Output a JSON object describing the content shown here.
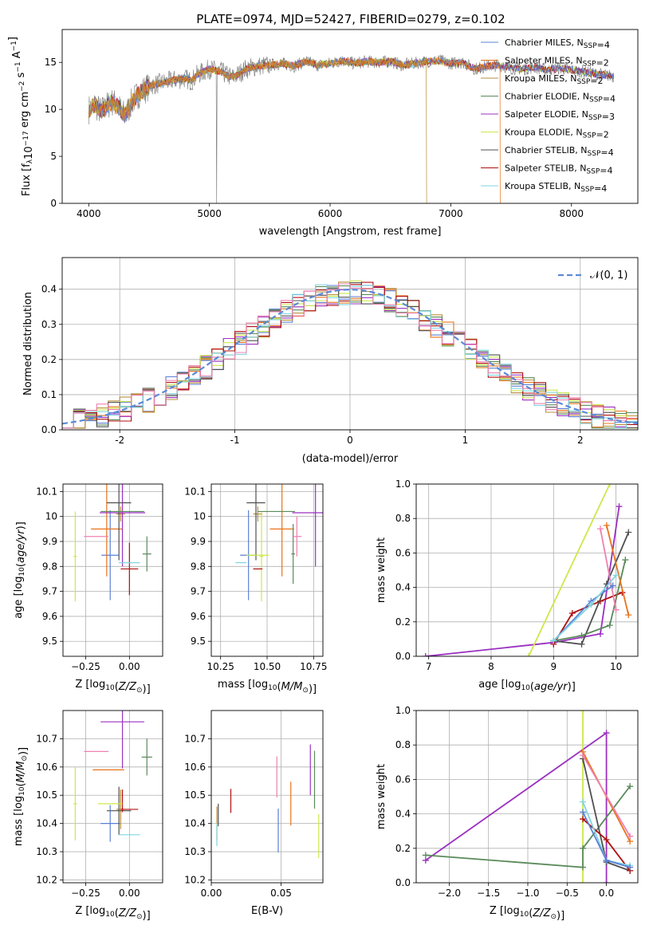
{
  "figure_title": "PLATE=0974, MJD=52427, FIBERID=0279, z=0.102",
  "colors": {
    "Chabrier MILES": "#5b7fd6",
    "Salpeter MILES": "#e8731a",
    "Kroupa MILES": "#b7903c",
    "Chabrier ELODIE": "#5a8a5a",
    "Salpeter ELODIE": "#9b30c0",
    "Kroupa ELODIE": "#cce84a",
    "Chabrier STELIB": "#505050",
    "Salpeter STELIB": "#b01010",
    "Kroupa STELIB": "#7fd6e0",
    "pink": "#f080b0",
    "data": "#777777",
    "gauss": "#5b8ad6"
  },
  "chart_data": [
    {
      "id": "spectrum",
      "type": "line",
      "title": "PLATE=0974, MJD=52427, FIBERID=0279, z=0.102",
      "xlabel": "wavelength [Angstrom, rest frame]",
      "ylabel_parts": [
        "Flux [f",
        "λ",
        "10",
        "−17",
        " erg cm",
        "−2",
        " s",
        "−1",
        " A",
        "−1",
        "]"
      ],
      "xlim": [
        3780,
        8550
      ],
      "ylim": [
        0,
        18.5
      ],
      "xticks": [
        4000,
        5000,
        6000,
        7000,
        8000
      ],
      "yticks": [
        0,
        5,
        10,
        15
      ],
      "legend": [
        {
          "name": "Chabrier MILES",
          "nssp": "4"
        },
        {
          "name": "Salpeter MILES",
          "nssp": "2"
        },
        {
          "name": "Kroupa MILES",
          "nssp": "2"
        },
        {
          "name": "Chabrier ELODIE",
          "nssp": "4"
        },
        {
          "name": "Salpeter ELODIE",
          "nssp": "3"
        },
        {
          "name": "Kroupa ELODIE",
          "nssp": "2"
        },
        {
          "name": "Chabrier STELIB",
          "nssp": "4"
        },
        {
          "name": "Salpeter STELIB",
          "nssp": "4"
        },
        {
          "name": "Kroupa STELIB",
          "nssp": "4"
        }
      ],
      "legend_placement": "upper right",
      "grid": false,
      "continuum": [
        [
          4000,
          10.0
        ],
        [
          4050,
          10.5
        ],
        [
          4100,
          9.8
        ],
        [
          4150,
          10.4
        ],
        [
          4200,
          10.8
        ],
        [
          4250,
          10.2
        ],
        [
          4300,
          9.3
        ],
        [
          4350,
          10.6
        ],
        [
          4400,
          11.5
        ],
        [
          4450,
          12.0
        ],
        [
          4500,
          12.5
        ],
        [
          4600,
          12.8
        ],
        [
          4700,
          13.1
        ],
        [
          4800,
          13.3
        ],
        [
          4850,
          13.0
        ],
        [
          4900,
          13.7
        ],
        [
          5000,
          14.3
        ],
        [
          5100,
          14.0
        ],
        [
          5150,
          13.6
        ],
        [
          5200,
          13.4
        ],
        [
          5300,
          14.3
        ],
        [
          5400,
          14.6
        ],
        [
          5500,
          14.7
        ],
        [
          5600,
          14.9
        ],
        [
          5700,
          14.6
        ],
        [
          5800,
          15.1
        ],
        [
          5900,
          14.7
        ],
        [
          6000,
          14.9
        ],
        [
          6100,
          15.2
        ],
        [
          6200,
          14.9
        ],
        [
          6300,
          15.1
        ],
        [
          6400,
          15.0
        ],
        [
          6500,
          15.1
        ],
        [
          6600,
          14.7
        ],
        [
          6700,
          14.9
        ],
        [
          6800,
          15.1
        ],
        [
          6900,
          15.2
        ],
        [
          7000,
          14.9
        ],
        [
          7100,
          15.0
        ],
        [
          7200,
          14.3
        ],
        [
          7300,
          14.6
        ],
        [
          7400,
          14.7
        ],
        [
          7500,
          14.4
        ],
        [
          7600,
          14.3
        ],
        [
          7700,
          14.5
        ],
        [
          7800,
          14.2
        ],
        [
          7900,
          14.4
        ],
        [
          8000,
          14.2
        ],
        [
          8100,
          14.0
        ],
        [
          8200,
          13.8
        ],
        [
          8300,
          13.6
        ],
        [
          8350,
          13.5
        ]
      ],
      "drops": [
        {
          "x": 5060,
          "y": 0,
          "series": "data"
        },
        {
          "x": 6800,
          "y": 0,
          "series": "Kroupa MILES"
        },
        {
          "x": 7410,
          "y": 0,
          "series": "Salpeter MILES"
        }
      ]
    },
    {
      "id": "residuals",
      "type": "histogram",
      "xlabel": "(data-model)/error",
      "ylabel": "Normed distribution",
      "xlim": [
        -2.5,
        2.5
      ],
      "ylim": [
        0,
        0.49
      ],
      "xticks": [
        -2,
        -1,
        0,
        1,
        2
      ],
      "yticks": [
        0.0,
        0.1,
        0.2,
        0.3,
        0.4
      ],
      "ytick_labels": [
        "0.0",
        "0.1",
        "0.2",
        "0.3",
        "0.4"
      ],
      "grid": true,
      "legend_label": "𝒩(0, 1)",
      "legend_placement": "upper right",
      "bins": 50,
      "series_colors": [
        "Chabrier MILES",
        "Salpeter MILES",
        "Kroupa MILES",
        "Chabrier ELODIE",
        "Salpeter ELODIE",
        "Kroupa ELODIE",
        "Chabrier STELIB",
        "Salpeter STELIB",
        "Kroupa STELIB",
        "pink"
      ],
      "gaussian": {
        "mu": 0,
        "sigma": 1
      }
    },
    {
      "id": "age_vs_Z",
      "type": "errorbar",
      "xlabel": "Z [log10(Z/Z⊙)]",
      "ylabel": "age  [log10(age/yr)]",
      "xlim": [
        -0.38,
        0.19
      ],
      "ylim": [
        9.44,
        10.13
      ],
      "xticks": [
        -0.25,
        0.0
      ],
      "xtick_labels": [
        "−0.25",
        "0.00"
      ],
      "yticks": [
        9.5,
        9.6,
        9.7,
        9.8,
        9.9,
        10.0,
        10.1
      ],
      "grid": true,
      "points": [
        {
          "c": "Chabrier MILES",
          "x": -0.11,
          "xe": 0.1,
          "y": 9.845,
          "ye": 0.36
        },
        {
          "c": "Salpeter MILES",
          "x": -0.13,
          "xe": 0.18,
          "y": 9.95,
          "ye": 0.38
        },
        {
          "c": "Kroupa MILES",
          "x": -0.05,
          "xe": 0.05,
          "y": 10.01,
          "ye": 0.06
        },
        {
          "c": "Chabrier ELODIE",
          "x": 0.1,
          "xe": 0.05,
          "y": 9.85,
          "ye": 0.14
        },
        {
          "c": "Salpeter ELODIE",
          "x": -0.04,
          "xe": 0.26,
          "y": 10.015,
          "ye": 0.43
        },
        {
          "c": "Kroupa ELODIE",
          "x": -0.31,
          "xe": 0.02,
          "y": 9.84,
          "ye": 0.36
        },
        {
          "c": "Chabrier STELIB",
          "x": -0.06,
          "xe": 0.14,
          "y": 10.055,
          "ye": 0.46
        },
        {
          "c": "Salpeter STELIB",
          "x": 0.0,
          "xe": 0.1,
          "y": 9.79,
          "ye": 0.21
        },
        {
          "c": "Kroupa STELIB",
          "x": 0.0,
          "xe": 0.12,
          "y": 9.815,
          "ye": 0.0
        },
        {
          "c": "pink",
          "x": -0.19,
          "xe": 0.14,
          "y": 9.92,
          "ye": 0.0
        },
        {
          "c": "Chabrier ELODIE",
          "x": -0.04,
          "xe": 0.25,
          "y": 10.02,
          "ye": 0.0
        }
      ]
    },
    {
      "id": "age_vs_mass",
      "type": "errorbar",
      "xlabel": "mass [log10(M/M⊙)]",
      "xlim": [
        10.2,
        10.8
      ],
      "ylim": [
        9.44,
        10.13
      ],
      "xticks": [
        10.25,
        10.5,
        10.75
      ],
      "xtick_labels": [
        "10.25",
        "10.50",
        "10.75"
      ],
      "yticks": [
        9.5,
        9.6,
        9.7,
        9.8,
        9.9,
        10.0,
        10.1
      ],
      "grid": true,
      "points": [
        {
          "c": "Chabrier MILES",
          "x": 10.4,
          "xe": 0.09,
          "y": 9.845,
          "ye": 0.36
        },
        {
          "c": "Salpeter MILES",
          "x": 10.58,
          "xe": 0.13,
          "y": 9.95,
          "ye": 0.38
        },
        {
          "c": "Kroupa MILES",
          "x": 10.45,
          "xe": 0.05,
          "y": 10.01,
          "ye": 0.06
        },
        {
          "c": "Chabrier ELODIE",
          "x": 10.64,
          "xe": 0.02,
          "y": 9.85,
          "ye": 0.24
        },
        {
          "c": "Salpeter ELODIE",
          "x": 10.76,
          "xe": 0.25,
          "y": 10.015,
          "ye": 0.43
        },
        {
          "c": "Kroupa ELODIE",
          "x": 10.47,
          "xe": 0.02,
          "y": 9.84,
          "ye": 0.36
        },
        {
          "c": "Chabrier STELIB",
          "x": 10.44,
          "xe": 0.1,
          "y": 10.055,
          "ye": 0.46
        },
        {
          "c": "Salpeter STELIB",
          "x": 10.45,
          "xe": 0.05,
          "y": 9.79,
          "ye": 0.0
        },
        {
          "c": "Kroupa STELIB",
          "x": 10.36,
          "xe": 0.06,
          "y": 9.815,
          "ye": 0.0
        },
        {
          "c": "pink",
          "x": 10.66,
          "xe": 0.05,
          "y": 9.92,
          "ye": 0.16
        },
        {
          "c": "Chabrier ELODIE",
          "x": 10.55,
          "xe": 0.2,
          "y": 10.02,
          "ye": 0.0
        },
        {
          "c": "Kroupa ELODIE",
          "x": 10.45,
          "xe": 0.12,
          "y": 9.845,
          "ye": 0.0
        }
      ]
    },
    {
      "id": "weight_vs_age",
      "type": "line",
      "xlabel": "age  [log10(age/yr)]",
      "ylabel": "mass weight",
      "xlim": [
        6.8,
        10.35
      ],
      "ylim": [
        0,
        1.0
      ],
      "xticks": [
        7,
        8,
        9,
        10
      ],
      "yticks": [
        0.0,
        0.2,
        0.4,
        0.6,
        0.8,
        1.0
      ],
      "ytick_labels": [
        "0.0",
        "0.2",
        "0.4",
        "0.6",
        "0.8",
        "1.0"
      ],
      "grid": true,
      "series": [
        {
          "c": "Salpeter ELODIE",
          "x": [
            6.95,
            9.0,
            9.75,
            10.05
          ],
          "y": [
            0.0,
            0.08,
            0.13,
            0.87
          ]
        },
        {
          "c": "Kroupa ELODIE",
          "x": [
            8.6,
            9.9
          ],
          "y": [
            0.0,
            1.0
          ]
        },
        {
          "c": "Salpeter STELIB",
          "x": [
            9.0,
            9.3,
            9.75,
            10.1
          ],
          "y": [
            0.07,
            0.25,
            0.32,
            0.37
          ]
        },
        {
          "c": "Chabrier STELIB",
          "x": [
            9.0,
            9.45,
            9.85,
            10.2
          ],
          "y": [
            0.09,
            0.07,
            0.42,
            0.72
          ]
        },
        {
          "c": "Chabrier ELODIE",
          "x": [
            9.0,
            9.45,
            9.9,
            10.15
          ],
          "y": [
            0.09,
            0.12,
            0.18,
            0.56
          ]
        },
        {
          "c": "Salpeter MILES",
          "x": [
            9.85,
            10.2
          ],
          "y": [
            0.76,
            0.24
          ]
        },
        {
          "c": "pink",
          "x": [
            9.75,
            10.0
          ],
          "y": [
            0.74,
            0.27
          ]
        },
        {
          "c": "Chabrier MILES",
          "x": [
            9.0,
            9.6,
            9.95
          ],
          "y": [
            0.09,
            0.32,
            0.41
          ]
        },
        {
          "c": "Kroupa STELIB",
          "x": [
            9.0,
            9.6,
            10.0
          ],
          "y": [
            0.09,
            0.3,
            0.47
          ]
        }
      ]
    },
    {
      "id": "mass_vs_Z",
      "type": "errorbar",
      "xlabel": "Z [log10(Z/Z⊙)]",
      "ylabel": "mass [log10(M/M⊙)]",
      "xlim": [
        -0.38,
        0.19
      ],
      "ylim": [
        10.19,
        10.8
      ],
      "xticks": [
        -0.25,
        0.0
      ],
      "xtick_labels": [
        "−0.25",
        "0.00"
      ],
      "yticks": [
        10.2,
        10.3,
        10.4,
        10.5,
        10.6,
        10.7
      ],
      "grid": true,
      "points": [
        {
          "c": "Chabrier MILES",
          "x": -0.11,
          "xe": 0.11,
          "y": 10.4,
          "ye": 0.13
        },
        {
          "c": "Salpeter MILES",
          "x": -0.12,
          "xe": 0.18,
          "y": 10.59,
          "ye": 0.0
        },
        {
          "c": "Kroupa MILES",
          "x": -0.05,
          "xe": 0.05,
          "y": 10.45,
          "ye": 0.14
        },
        {
          "c": "Chabrier ELODIE",
          "x": 0.1,
          "xe": 0.06,
          "y": 10.635,
          "ye": 0.13
        },
        {
          "c": "Salpeter ELODIE",
          "x": -0.04,
          "xe": 0.25,
          "y": 10.76,
          "ye": 0.33
        },
        {
          "c": "Kroupa ELODIE",
          "x": -0.31,
          "xe": 0.02,
          "y": 10.47,
          "ye": 0.26
        },
        {
          "c": "Chabrier STELIB",
          "x": -0.06,
          "xe": 0.14,
          "y": 10.445,
          "ye": 0.17
        },
        {
          "c": "Salpeter STELIB",
          "x": 0.0,
          "xe": 0.1,
          "y": 10.45,
          "ye": 0.0
        },
        {
          "c": "Kroupa STELIB",
          "x": 0.0,
          "xe": 0.12,
          "y": 10.36,
          "ye": 0.0
        },
        {
          "c": "pink",
          "x": -0.19,
          "xe": 0.14,
          "y": 10.655,
          "ye": 0.0
        },
        {
          "c": "Salpeter STELIB",
          "x": -0.04,
          "xe": 0.0,
          "y": 10.48,
          "ye": 0.08
        },
        {
          "c": "Kroupa ELODIE",
          "x": -0.11,
          "xe": 0.14,
          "y": 10.47,
          "ye": 0.0
        }
      ]
    },
    {
      "id": "mass_vs_ebv",
      "type": "errorbar",
      "xlabel": "E(B-V)",
      "xlim": [
        0.0,
        0.08
      ],
      "ylim": [
        10.19,
        10.8
      ],
      "xticks": [
        0.0,
        0.05
      ],
      "xtick_labels": [
        "0.00",
        "0.05"
      ],
      "yticks": [
        10.2,
        10.3,
        10.4,
        10.5,
        10.6,
        10.7
      ],
      "grid": true,
      "points": [
        {
          "c": "Chabrier MILES",
          "x": 0.048,
          "y": 10.375,
          "ye": 0.155
        },
        {
          "c": "Salpeter MILES",
          "x": 0.057,
          "y": 10.47,
          "ye": 0.155
        },
        {
          "c": "Kroupa MILES",
          "x": 0.004,
          "y": 10.4,
          "ye": 0.12
        },
        {
          "c": "Chabrier ELODIE",
          "x": 0.074,
          "y": 10.555,
          "ye": 0.205
        },
        {
          "c": "Salpeter ELODIE",
          "x": 0.071,
          "y": 10.59,
          "ye": 0.18
        },
        {
          "c": "Kroupa ELODIE",
          "x": 0.077,
          "y": 10.355,
          "ye": 0.155
        },
        {
          "c": "Chabrier STELIB",
          "x": 0.005,
          "y": 10.43,
          "ye": 0.08
        },
        {
          "c": "Salpeter STELIB",
          "x": 0.014,
          "y": 10.48,
          "ye": 0.085
        },
        {
          "c": "Kroupa STELIB",
          "x": 0.004,
          "y": 10.36,
          "ye": 0.08
        },
        {
          "c": "pink",
          "x": 0.047,
          "y": 10.565,
          "ye": 0.145
        }
      ]
    },
    {
      "id": "weight_vs_Z",
      "type": "line",
      "xlabel": "Z [log10(Z/Z⊙)]",
      "ylabel": "mass weight",
      "xlim": [
        -2.42,
        0.4
      ],
      "ylim": [
        0,
        1.0
      ],
      "xticks": [
        -2.0,
        -1.5,
        -1.0,
        -0.5,
        0.0
      ],
      "xtick_labels": [
        "−2.0",
        "−1.5",
        "−1.0",
        "−0.5",
        "0.0"
      ],
      "yticks": [
        0.0,
        0.2,
        0.4,
        0.6,
        0.8,
        1.0
      ],
      "ytick_labels": [
        "0.0",
        "0.2",
        "0.4",
        "0.6",
        "0.8",
        "1.0"
      ],
      "grid": true,
      "series": [
        {
          "c": "Salpeter ELODIE",
          "x": [
            -2.3,
            0.0,
            0.0
          ],
          "y": [
            0.13,
            0.87,
            0.0
          ]
        },
        {
          "c": "Kroupa ELODIE",
          "x": [
            -0.3,
            -0.3
          ],
          "y": [
            0.0,
            1.0
          ]
        },
        {
          "c": "Chabrier ELODIE",
          "x": [
            -2.3,
            -0.3,
            -0.3,
            0.3
          ],
          "y": [
            0.16,
            0.09,
            0.2,
            0.56
          ]
        },
        {
          "c": "Chabrier STELIB",
          "x": [
            -0.3,
            0.0,
            0.3
          ],
          "y": [
            0.72,
            0.12,
            0.07
          ]
        },
        {
          "c": "Salpeter STELIB",
          "x": [
            -0.3,
            0.0,
            0.3
          ],
          "y": [
            0.37,
            0.25,
            0.07
          ]
        },
        {
          "c": "Salpeter MILES",
          "x": [
            -0.3,
            0.3
          ],
          "y": [
            0.76,
            0.24
          ]
        },
        {
          "c": "pink",
          "x": [
            -0.3,
            0.3
          ],
          "y": [
            0.74,
            0.27
          ]
        },
        {
          "c": "Kroupa STELIB",
          "x": [
            -0.3,
            0.0,
            0.3
          ],
          "y": [
            0.47,
            0.13,
            0.1
          ]
        },
        {
          "c": "Chabrier MILES",
          "x": [
            -0.3,
            0.0,
            0.3
          ],
          "y": [
            0.41,
            0.13,
            0.09
          ]
        }
      ]
    }
  ]
}
